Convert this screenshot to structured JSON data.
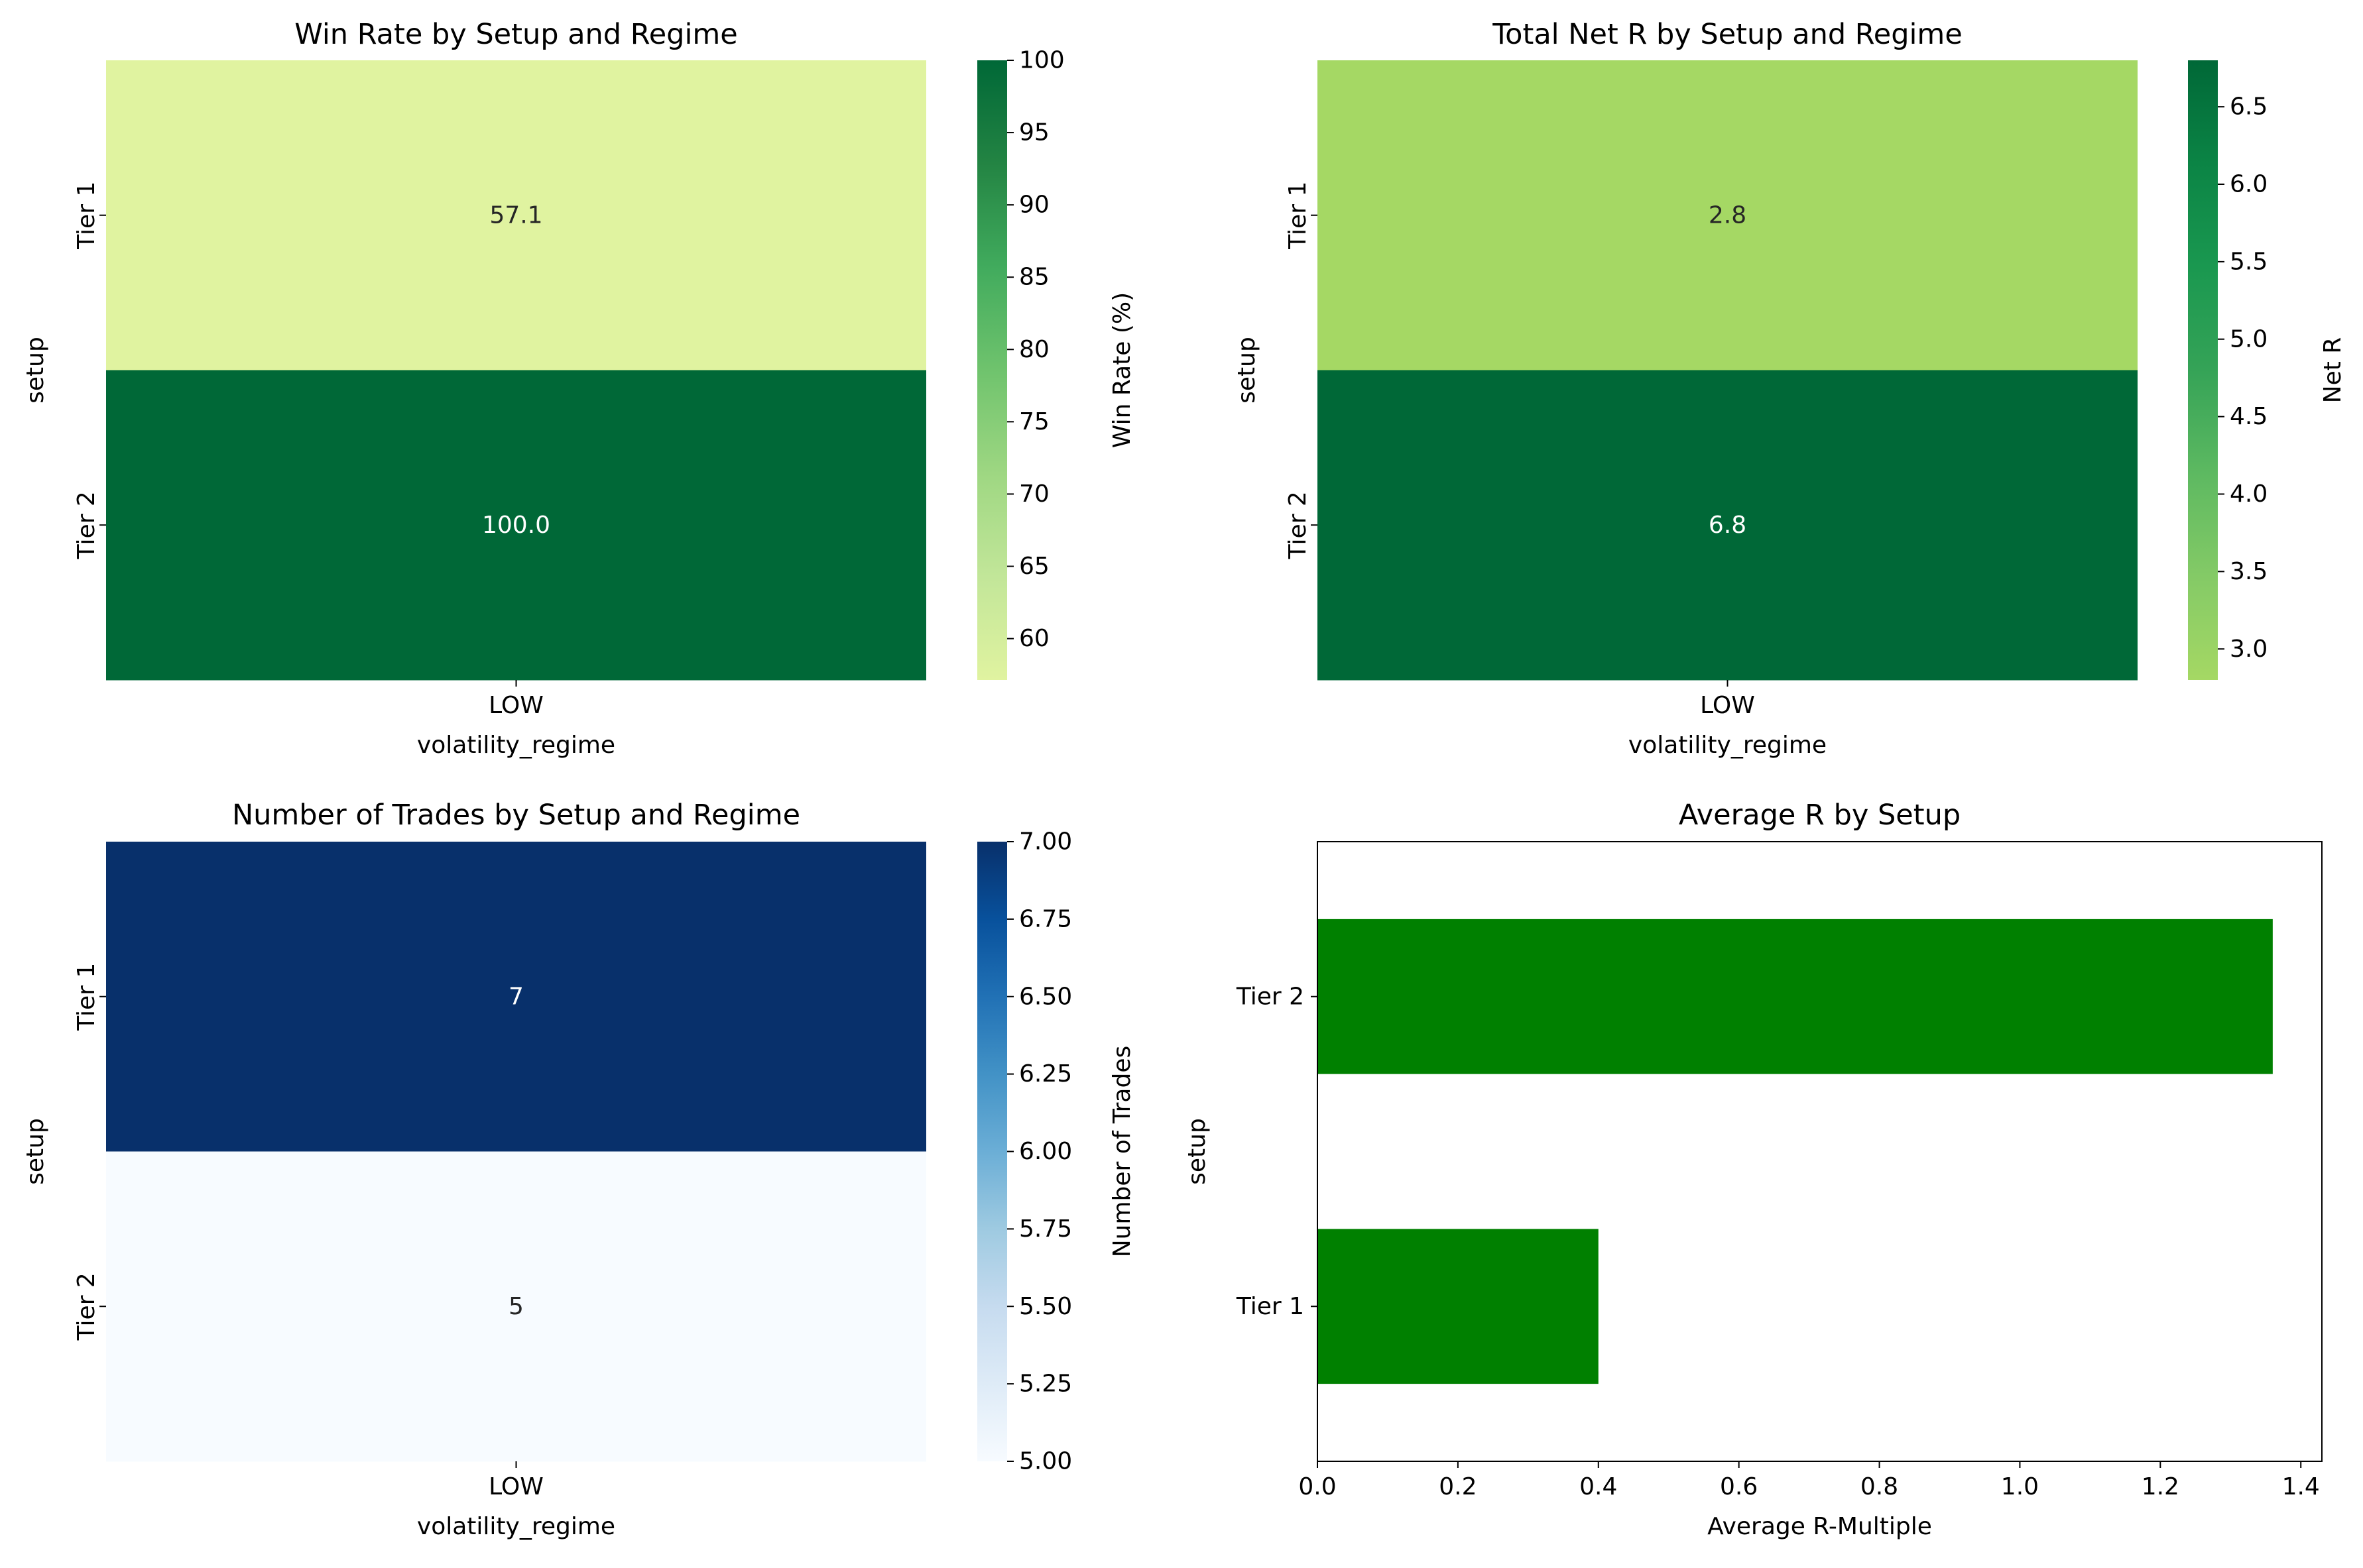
{
  "chart_data": [
    {
      "type": "heatmap",
      "title": "Win Rate by Setup and Regime",
      "xlabel": "volatility_regime",
      "ylabel": "setup",
      "x_categories": [
        "LOW"
      ],
      "y_categories": [
        "Tier 1",
        "Tier 2"
      ],
      "values": [
        [
          57.1
        ],
        [
          100.0
        ]
      ],
      "annotations": [
        [
          "57.1"
        ],
        [
          "100.0"
        ]
      ],
      "colormap": "YlGn",
      "colorbar": {
        "label": "Win Rate (%)",
        "range": [
          57.14,
          100
        ],
        "ticks": [
          60,
          65,
          70,
          75,
          80,
          85,
          90,
          95,
          100
        ],
        "tick_labels": [
          "60",
          "65",
          "70",
          "75",
          "80",
          "85",
          "90",
          "95",
          "100"
        ],
        "colors": [
          "#e0f3a0",
          "#c2e699",
          "#9ed782",
          "#6fc36d",
          "#41ab5d",
          "#238443",
          "#006837"
        ]
      }
    },
    {
      "type": "heatmap",
      "title": "Total Net R by Setup and Regime",
      "xlabel": "volatility_regime",
      "ylabel": "setup",
      "x_categories": [
        "LOW"
      ],
      "y_categories": [
        "Tier 1",
        "Tier 2"
      ],
      "values": [
        [
          2.8
        ],
        [
          6.8
        ]
      ],
      "annotations": [
        [
          "2.8"
        ],
        [
          "6.8"
        ]
      ],
      "colormap": "RdYlGn-upper",
      "colorbar": {
        "label": "Net R",
        "range": [
          2.8,
          6.8
        ],
        "ticks": [
          3.0,
          3.5,
          4.0,
          4.5,
          5.0,
          5.5,
          6.0,
          6.5
        ],
        "tick_labels": [
          "3.0",
          "3.5",
          "4.0",
          "4.5",
          "5.0",
          "5.5",
          "6.0",
          "6.5"
        ],
        "colors": [
          "#a5d864",
          "#84ca66",
          "#5db961",
          "#35a357",
          "#1a9850",
          "#0b8445",
          "#006837"
        ]
      }
    },
    {
      "type": "heatmap",
      "title": "Number of Trades by Setup and Regime",
      "xlabel": "volatility_regime",
      "ylabel": "setup",
      "x_categories": [
        "LOW"
      ],
      "y_categories": [
        "Tier 1",
        "Tier 2"
      ],
      "values": [
        [
          7
        ],
        [
          5
        ]
      ],
      "annotations": [
        [
          "7"
        ],
        [
          "5"
        ]
      ],
      "colormap": "Blues",
      "colorbar": {
        "label": "Number of Trades",
        "range": [
          5,
          7
        ],
        "ticks": [
          5.0,
          5.25,
          5.5,
          5.75,
          6.0,
          6.25,
          6.5,
          6.75,
          7.0
        ],
        "tick_labels": [
          "5.00",
          "5.25",
          "5.50",
          "5.75",
          "6.00",
          "6.25",
          "6.50",
          "6.75",
          "7.00"
        ],
        "colors": [
          "#f7fbff",
          "#deebf7",
          "#c6dbef",
          "#9ecae1",
          "#6baed6",
          "#4292c6",
          "#2171b5",
          "#08519c",
          "#08306b"
        ]
      }
    },
    {
      "type": "bar",
      "orientation": "horizontal",
      "title": "Average R by Setup",
      "xlabel": "Average R-Multiple",
      "ylabel": "setup",
      "categories": [
        "Tier 1",
        "Tier 2"
      ],
      "values": [
        0.4,
        1.36
      ],
      "xlim": [
        0,
        1.43
      ],
      "xticks": [
        0.0,
        0.2,
        0.4,
        0.6,
        0.8,
        1.0,
        1.2,
        1.4
      ],
      "xtick_labels": [
        "0.0",
        "0.2",
        "0.4",
        "0.6",
        "0.8",
        "1.0",
        "1.2",
        "1.4"
      ],
      "bar_color": "#008000"
    }
  ]
}
